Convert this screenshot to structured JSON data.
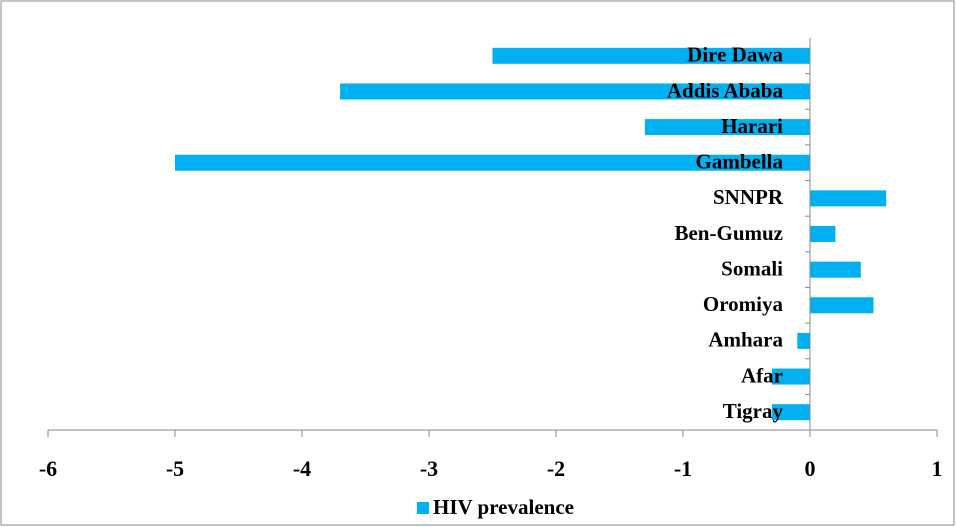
{
  "chart_data": {
    "type": "bar",
    "orientation": "horizontal",
    "categories": [
      "Tigray",
      "Afar",
      "Amhara",
      "Oromiya",
      "Somali",
      "Ben-Gumuz",
      "SNNPR",
      "Gambella",
      "Harari",
      "Addis Ababa",
      "Dire Dawa"
    ],
    "series": [
      {
        "name": "HIV prevalence",
        "color": "#00b0f0",
        "values": [
          -0.3,
          -0.3,
          -0.1,
          0.5,
          0.4,
          0.2,
          0.6,
          -5.0,
          -1.3,
          -3.7,
          -2.5
        ]
      }
    ],
    "xlim": [
      -6,
      1
    ],
    "xticks": [
      -6,
      -5,
      -4,
      -3,
      -2,
      -1,
      0,
      1
    ],
    "legend": "bottom"
  }
}
